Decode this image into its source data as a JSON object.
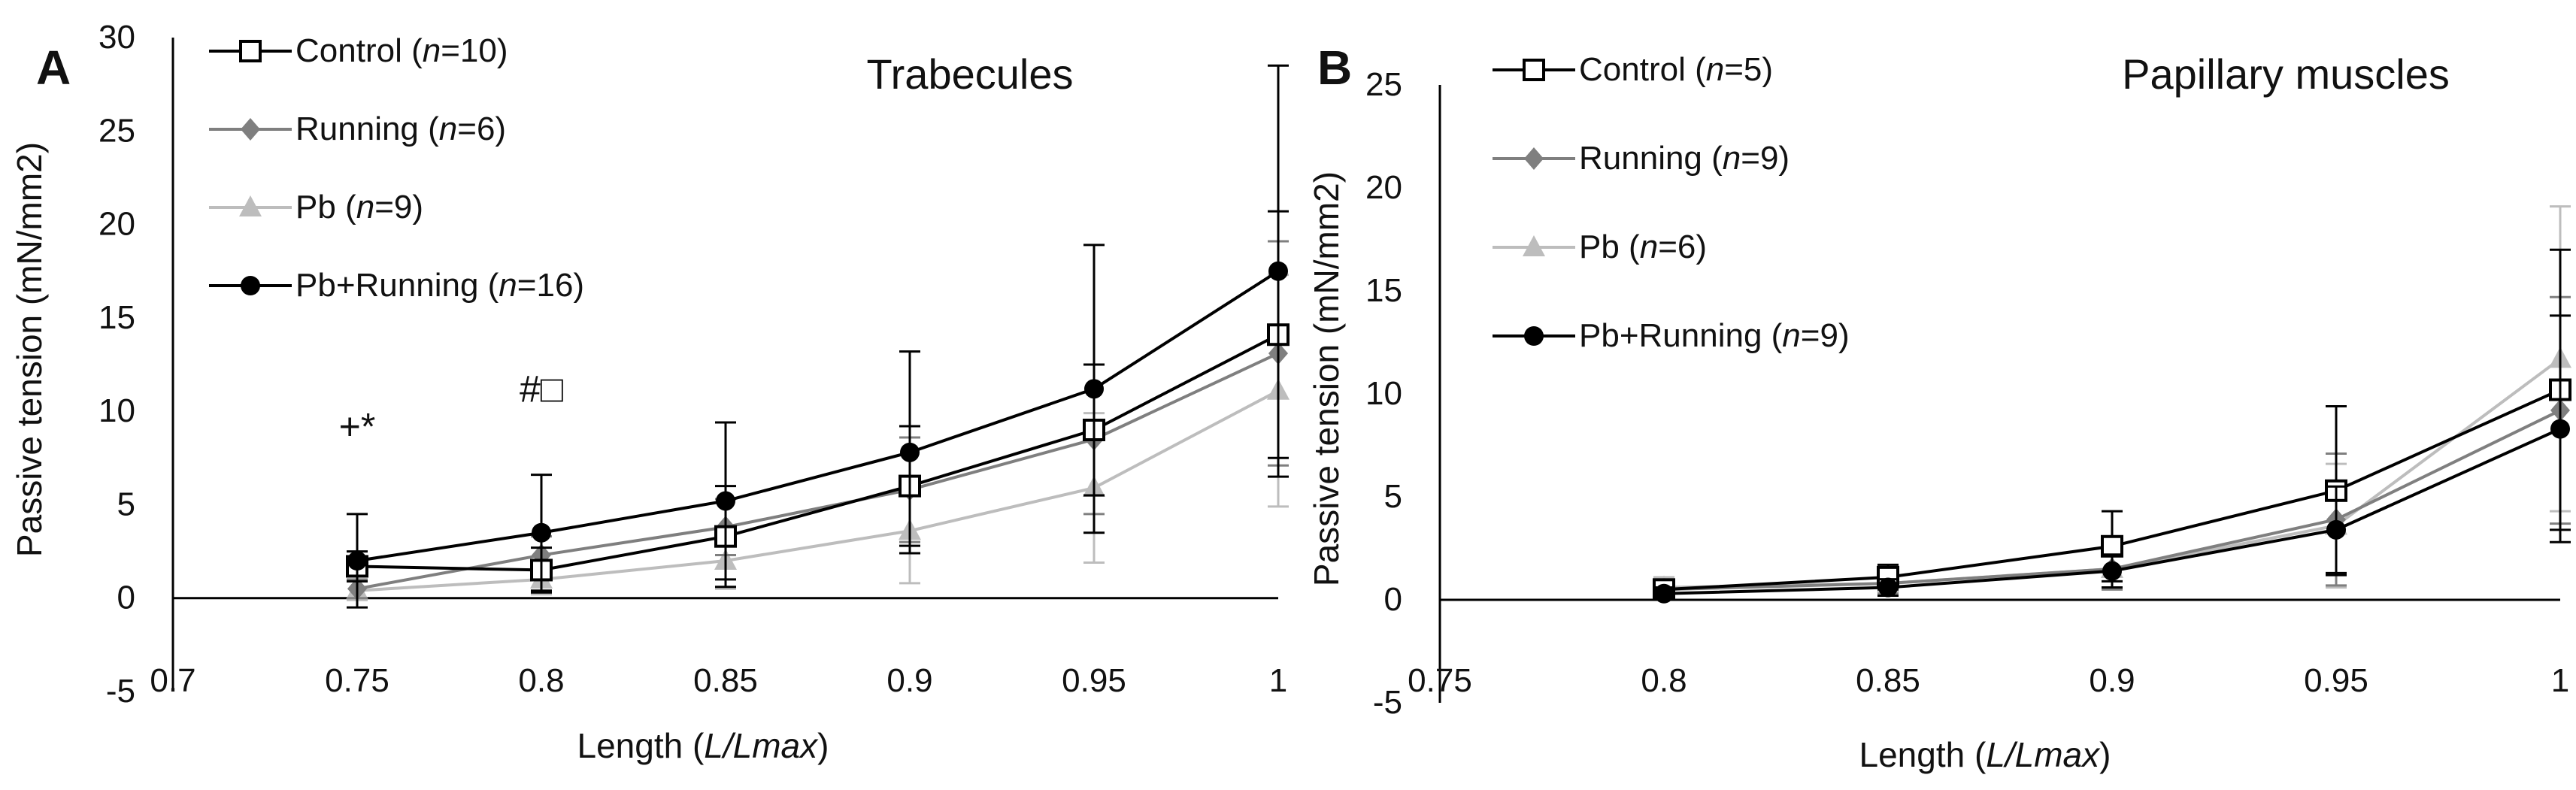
{
  "colors": {
    "control": "#000000",
    "running": "#7f7f7f",
    "pb": "#bdbdbd",
    "pbrunning": "#000000",
    "axis": "#000000"
  },
  "chart_data": [
    {
      "panel_label": "A",
      "type": "line",
      "title": "Trabecules",
      "xlabel_prefix": "Length (",
      "xlabel_italic": "L/Lmax",
      "xlabel_suffix": ")",
      "ylabel": "Passive tension (mN/mm2)",
      "xlim": [
        0.7,
        1.0
      ],
      "ylim": [
        -5,
        30
      ],
      "xticks": [
        0.7,
        0.75,
        0.8,
        0.85,
        0.9,
        0.95,
        1.0
      ],
      "xtick_labels": [
        "0.7",
        "0.75",
        "0.8",
        "0.85",
        "0.9",
        "0.95",
        "1"
      ],
      "yticks": [
        -5,
        0,
        5,
        10,
        15,
        20,
        25,
        30
      ],
      "ytick_labels": [
        "-5",
        "0",
        "5",
        "10",
        "15",
        "20",
        "25",
        "30"
      ],
      "x": [
        0.75,
        0.8,
        0.85,
        0.9,
        0.95,
        1.0
      ],
      "annotations": [
        {
          "text": "+*",
          "x": 0.75,
          "y": 8.5
        },
        {
          "text": "#□",
          "x": 0.8,
          "y": 10.5
        }
      ],
      "series": [
        {
          "key": "control",
          "name_prefix": "Control (",
          "n_label": "n",
          "name_suffix": "=10)",
          "marker": "square-open",
          "values": [
            1.7,
            1.5,
            3.3,
            6.0,
            9.0,
            14.1
          ],
          "errors": [
            0.8,
            1.2,
            2.7,
            3.2,
            3.5,
            6.6
          ]
        },
        {
          "key": "running",
          "name_prefix": "Running (",
          "n_label": "n",
          "name_suffix": "=6)",
          "marker": "diamond",
          "values": [
            0.5,
            2.3,
            3.8,
            5.8,
            8.5,
            13.1
          ],
          "errors": [
            0.5,
            1.0,
            1.5,
            2.8,
            4.0,
            6.0
          ]
        },
        {
          "key": "pb",
          "name_prefix": "Pb (",
          "n_label": "n",
          "name_suffix": "=9)",
          "marker": "triangle",
          "values": [
            0.4,
            1.0,
            2.0,
            3.6,
            5.9,
            11.1
          ],
          "errors": [
            0.5,
            0.8,
            1.5,
            2.8,
            4.0,
            6.2
          ]
        },
        {
          "key": "pbrunning",
          "name_prefix": "Pb+Running (",
          "n_label": "n",
          "name_suffix": "=16)",
          "marker": "circle",
          "values": [
            2.0,
            3.5,
            5.2,
            7.8,
            11.2,
            17.5
          ],
          "errors": [
            2.5,
            3.1,
            4.2,
            5.4,
            7.7,
            11.0
          ]
        }
      ]
    },
    {
      "panel_label": "B",
      "type": "line",
      "title": "Papillary muscles",
      "xlabel_prefix": "Length (",
      "xlabel_italic": "L/Lmax",
      "xlabel_suffix": ")",
      "ylabel": "Passive tension (mN/mm2)",
      "xlim": [
        0.75,
        1.0
      ],
      "ylim": [
        -5,
        25
      ],
      "xticks": [
        0.75,
        0.8,
        0.85,
        0.9,
        0.95,
        1.0
      ],
      "xtick_labels": [
        "0.75",
        "0.8",
        "0.85",
        "0.9",
        "0.95",
        "1"
      ],
      "yticks": [
        -5,
        0,
        5,
        10,
        15,
        20,
        25
      ],
      "ytick_labels": [
        "-5",
        "0",
        "5",
        "10",
        "15",
        "20",
        "25"
      ],
      "x": [
        0.8,
        0.85,
        0.9,
        0.95,
        1.0
      ],
      "annotations": [],
      "series": [
        {
          "key": "control",
          "name_prefix": "Control (",
          "n_label": "n",
          "name_suffix": "=5)",
          "marker": "square-open",
          "values": [
            0.5,
            1.1,
            2.6,
            5.3,
            10.2
          ],
          "errors": [
            0.4,
            0.6,
            1.7,
            4.1,
            6.8
          ]
        },
        {
          "key": "running",
          "name_prefix": "Running (",
          "n_label": "n",
          "name_suffix": "=9)",
          "marker": "diamond",
          "values": [
            0.5,
            0.8,
            1.5,
            3.9,
            9.2
          ],
          "errors": [
            0.4,
            0.5,
            1.0,
            3.2,
            5.5
          ]
        },
        {
          "key": "pb",
          "name_prefix": "Pb (",
          "n_label": "n",
          "name_suffix": "=6)",
          "marker": "triangle",
          "values": [
            0.6,
            0.8,
            1.5,
            3.6,
            11.7
          ],
          "errors": [
            0.5,
            0.6,
            1.0,
            3.0,
            7.4
          ]
        },
        {
          "key": "pbrunning",
          "name_prefix": "Pb+Running (",
          "n_label": "n",
          "name_suffix": "=9)",
          "marker": "circle",
          "values": [
            0.3,
            0.6,
            1.4,
            3.4,
            8.3
          ],
          "errors": [
            0.3,
            0.4,
            0.8,
            2.1,
            5.5
          ]
        }
      ]
    }
  ]
}
